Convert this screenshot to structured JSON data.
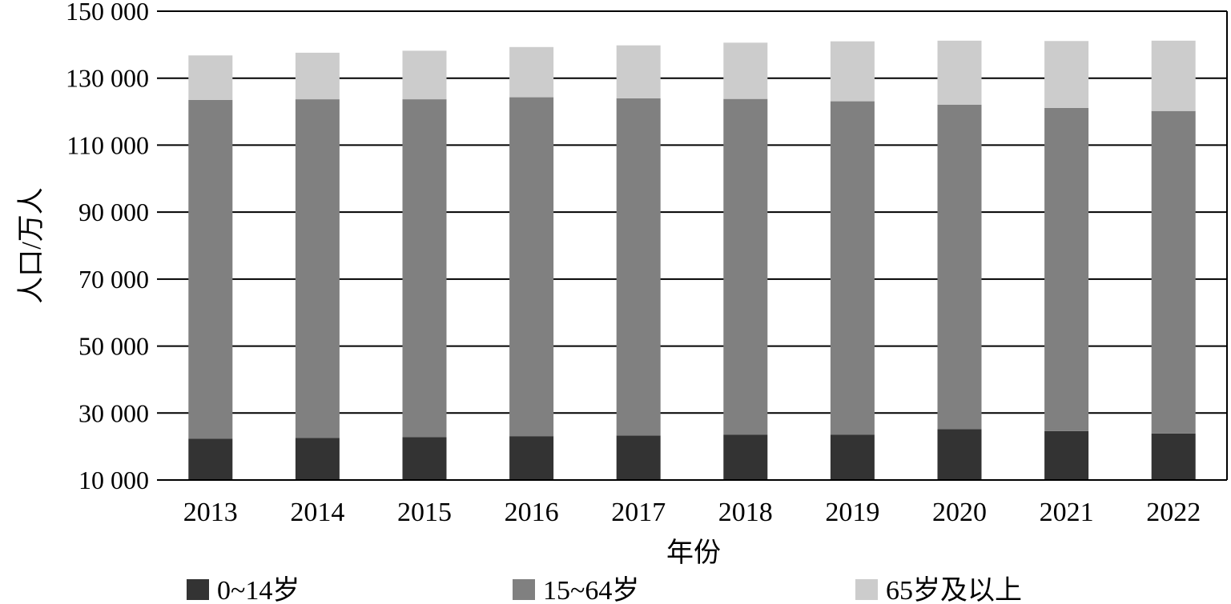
{
  "chart_data": {
    "type": "bar",
    "stacked": true,
    "title": "",
    "xlabel": "年份",
    "ylabel": "人口/万人",
    "ylim": [
      10000,
      150000
    ],
    "yticks": [
      10000,
      30000,
      50000,
      70000,
      90000,
      110000,
      130000,
      150000
    ],
    "ytick_labels": [
      "10 000",
      "30 000",
      "50 000",
      "70 000",
      "90 000",
      "110 000",
      "130 000",
      "150 000"
    ],
    "grid": "horizontal",
    "legend_position": "bottom",
    "categories": [
      "2013",
      "2014",
      "2015",
      "2016",
      "2017",
      "2018",
      "2019",
      "2020",
      "2021",
      "2022"
    ],
    "series": [
      {
        "name": "0~14岁",
        "color": "#333333",
        "values": [
          22300,
          22600,
          22800,
          23100,
          23300,
          23500,
          23500,
          25200,
          24600,
          23900
        ]
      },
      {
        "name": "15~64岁",
        "color": "#808080",
        "values": [
          101200,
          101100,
          100900,
          101200,
          100700,
          100300,
          99600,
          96900,
          96500,
          96300
        ]
      },
      {
        "name": "65岁及以上",
        "color": "#cccccc",
        "values": [
          13300,
          13900,
          14500,
          15000,
          15800,
          16800,
          17900,
          19100,
          20000,
          21000
        ]
      }
    ]
  }
}
